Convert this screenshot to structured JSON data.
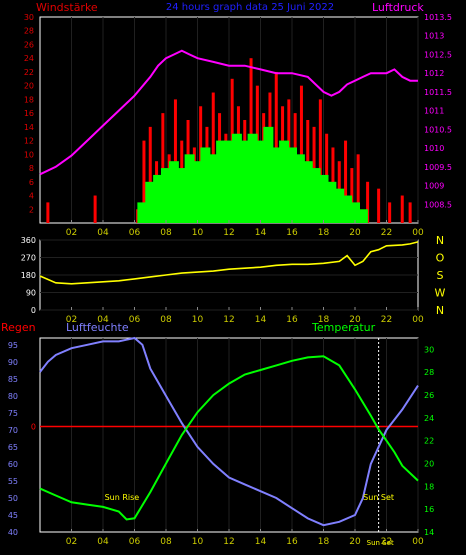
{
  "header": {
    "left_label": "Windstärke",
    "title": "24 hours graph data  25 Juni 2022",
    "right_label": "Luftdruck"
  },
  "colors": {
    "wind_axis": "#e00000",
    "pressure": "#ff00ff",
    "wind_max": "#ff0000",
    "wind_avg": "#00ff00",
    "direction": "#ffff00",
    "rain": "#ff0000",
    "humidity": "#8080ff",
    "temperature": "#00ff00",
    "title": "#2020ff",
    "grid": "#202020",
    "frame": "#ffffff"
  },
  "chart_data": [
    {
      "type": "line",
      "name": "wind-pressure",
      "x_ticks": [
        "02",
        "04",
        "06",
        "08",
        "10",
        "12",
        "14",
        "16",
        "18",
        "20",
        "22",
        "00"
      ],
      "xlim": [
        0,
        24
      ],
      "left_axis": {
        "label": "Windstärke",
        "ylim": [
          0,
          30
        ],
        "ticks": [
          "2",
          "4",
          "6",
          "8",
          "10",
          "12",
          "14",
          "16",
          "18",
          "20",
          "22",
          "24",
          "26",
          "28",
          "30"
        ]
      },
      "right_axis": {
        "label": "Luftdruck",
        "ylim": [
          1008,
          1013.5
        ],
        "ticks": [
          "1008.5",
          "1009",
          "1009.5",
          "1010",
          "1010.5",
          "1011",
          "1011.5",
          "1012",
          "1012.5",
          "1013",
          "1013.5"
        ]
      },
      "pressure": {
        "x": [
          0,
          1,
          2,
          3,
          4,
          5,
          6,
          7,
          7.5,
          8,
          8.5,
          9,
          9.5,
          10,
          11,
          12,
          13,
          14,
          15,
          16,
          17,
          17.5,
          18,
          18.5,
          19,
          19.5,
          20,
          20.5,
          21,
          22,
          22.5,
          23,
          23.5,
          24
        ],
        "y": [
          1009.3,
          1009.5,
          1009.8,
          1010.2,
          1010.6,
          1011.0,
          1011.4,
          1011.9,
          1012.2,
          1012.4,
          1012.5,
          1012.6,
          1012.5,
          1012.4,
          1012.3,
          1012.2,
          1012.2,
          1012.1,
          1012.0,
          1012.0,
          1011.9,
          1011.7,
          1011.5,
          1011.4,
          1011.5,
          1011.7,
          1011.8,
          1011.9,
          1012.0,
          1012.0,
          1012.1,
          1011.9,
          1011.8,
          1011.8
        ]
      },
      "wind_max": {
        "x": [
          0.5,
          3.5,
          6.2,
          6.6,
          7.0,
          7.4,
          7.8,
          8.2,
          8.6,
          9.0,
          9.4,
          9.8,
          10.2,
          10.6,
          11.0,
          11.4,
          11.8,
          12.2,
          12.6,
          13.0,
          13.4,
          13.8,
          14.2,
          14.6,
          15.0,
          15.4,
          15.8,
          16.2,
          16.6,
          17.0,
          17.4,
          17.8,
          18.2,
          18.6,
          19.0,
          19.4,
          19.8,
          20.2,
          20.8,
          21.5,
          22.2,
          23.0,
          23.5
        ],
        "y": [
          3,
          4,
          2,
          12,
          14,
          9,
          16,
          10,
          18,
          12,
          15,
          11,
          17,
          14,
          19,
          16,
          13,
          21,
          17,
          15,
          24,
          20,
          16,
          19,
          22,
          17,
          18,
          16,
          20,
          15,
          14,
          18,
          13,
          11,
          9,
          12,
          8,
          10,
          6,
          5,
          3,
          4,
          3
        ]
      },
      "wind_avg": {
        "x": [
          6.5,
          7.0,
          7.5,
          8.0,
          8.5,
          9.0,
          9.5,
          10.0,
          10.5,
          11.0,
          11.5,
          12.0,
          12.5,
          13.0,
          13.5,
          14.0,
          14.5,
          15.0,
          15.5,
          16.0,
          16.5,
          17.0,
          17.5,
          18.0,
          18.5,
          19.0,
          19.5,
          20.0,
          20.5
        ],
        "y": [
          3,
          6,
          7,
          8,
          9,
          8,
          10,
          9,
          11,
          10,
          12,
          12,
          13,
          12,
          13,
          12,
          14,
          11,
          12,
          11,
          10,
          9,
          8,
          7,
          6,
          5,
          4,
          3,
          2
        ]
      }
    },
    {
      "type": "line",
      "name": "wind-direction",
      "x_ticks": [
        "02",
        "04",
        "06",
        "08",
        "10",
        "12",
        "14",
        "16",
        "18",
        "20",
        "22",
        "00"
      ],
      "xlim": [
        0,
        24
      ],
      "ylim": [
        0,
        360
      ],
      "left_ticks": [
        "0",
        "90",
        "180",
        "270",
        "360"
      ],
      "right_ticks": [
        "N",
        "W",
        "S",
        "O",
        "N"
      ],
      "x": [
        0,
        1,
        2,
        3,
        4,
        5,
        6,
        7,
        8,
        9,
        10,
        11,
        12,
        13,
        14,
        15,
        16,
        17,
        18,
        19,
        19.5,
        20,
        20.5,
        21,
        21.5,
        22,
        23,
        23.5,
        24
      ],
      "y": [
        175,
        140,
        135,
        140,
        145,
        150,
        160,
        170,
        180,
        190,
        195,
        200,
        210,
        215,
        220,
        230,
        235,
        235,
        240,
        250,
        280,
        230,
        250,
        300,
        310,
        330,
        335,
        340,
        350
      ]
    },
    {
      "type": "line",
      "name": "humidity-temperature",
      "x_ticks": [
        "02",
        "04",
        "06",
        "08",
        "10",
        "12",
        "14",
        "16",
        "18",
        "20",
        "22",
        "00"
      ],
      "xlim": [
        0,
        24
      ],
      "axis_labels": {
        "rain": "Regen",
        "humidity": "Luftfeuchte",
        "temperature": "Temperatur"
      },
      "humidity_axis": {
        "ylim": [
          40,
          97
        ],
        "ticks": [
          "40",
          "45",
          "50",
          "55",
          "60",
          "65",
          "70",
          "75",
          "80",
          "85",
          "90",
          "95"
        ]
      },
      "temperature_axis": {
        "ylim": [
          14,
          31
        ],
        "ticks": [
          "14",
          "16",
          "18",
          "20",
          "22",
          "24",
          "26",
          "28",
          "30"
        ]
      },
      "rain_value_label": "0",
      "humidity": {
        "x": [
          0,
          0.5,
          1,
          2,
          3,
          4,
          5,
          6,
          6.5,
          7,
          8,
          9,
          10,
          11,
          12,
          13,
          14,
          15,
          16,
          17,
          18,
          19,
          20,
          20.5,
          21,
          21.5,
          22,
          23,
          24
        ],
        "y": [
          87,
          90,
          92,
          94,
          95,
          96,
          96,
          97,
          95,
          88,
          80,
          72,
          65,
          60,
          56,
          54,
          52,
          50,
          47,
          44,
          42,
          43,
          45,
          50,
          60,
          65,
          70,
          76,
          83
        ]
      },
      "temperature": {
        "x": [
          0,
          1,
          2,
          3,
          4,
          5,
          5.5,
          6,
          7,
          8,
          9,
          10,
          11,
          12,
          13,
          14,
          15,
          16,
          17,
          18,
          19,
          20,
          21,
          21.5,
          22,
          22.5,
          23,
          24
        ],
        "y": [
          17.8,
          17.2,
          16.6,
          16.4,
          16.2,
          15.8,
          15.1,
          15.2,
          17.5,
          20.0,
          22.5,
          24.5,
          26.0,
          27.0,
          27.8,
          28.2,
          28.6,
          29.0,
          29.3,
          29.4,
          28.6,
          26.5,
          24.2,
          23.0,
          22.0,
          21.0,
          19.8,
          18.5
        ]
      },
      "annotations": [
        {
          "text": "Sun Rise",
          "x": 5.2
        },
        {
          "text": "Sun Set",
          "x": 21.5
        },
        {
          "text": "Sun Set",
          "x": 21.6
        }
      ]
    }
  ]
}
